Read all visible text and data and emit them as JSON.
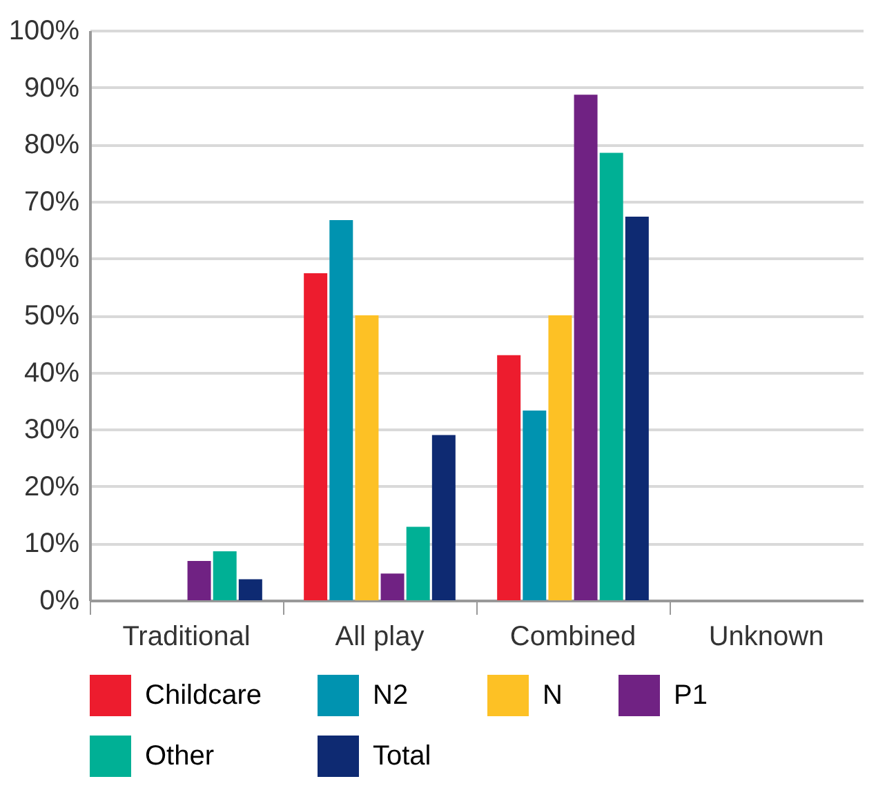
{
  "chart_data": {
    "type": "bar",
    "categories": [
      "Traditional",
      "All play",
      "Combined",
      "Unknown"
    ],
    "series": [
      {
        "name": "Childcare",
        "color": "#ed1c2e",
        "values": [
          0,
          57.4,
          43.0,
          0
        ]
      },
      {
        "name": "N2",
        "color": "#0093b0",
        "values": [
          0,
          66.7,
          33.3,
          0
        ]
      },
      {
        "name": "N",
        "color": "#fdc125",
        "values": [
          0,
          50,
          50,
          0
        ]
      },
      {
        "name": "P1",
        "color": "#702283",
        "values": [
          6.9,
          4.7,
          88.7,
          0
        ]
      },
      {
        "name": "Other",
        "color": "#00b095",
        "values": [
          8.6,
          12.9,
          78.5,
          0
        ]
      },
      {
        "name": "Total",
        "color": "#0e2a72",
        "values": [
          3.7,
          29.0,
          67.3,
          0
        ]
      }
    ],
    "ylim": [
      0,
      100
    ],
    "yticks": [
      {
        "value": 0,
        "label": "0%"
      },
      {
        "value": 10,
        "label": "10%"
      },
      {
        "value": 20,
        "label": "20%"
      },
      {
        "value": 30,
        "label": "30%"
      },
      {
        "value": 40,
        "label": "40%"
      },
      {
        "value": 50,
        "label": "50%"
      },
      {
        "value": 60,
        "label": "60%"
      },
      {
        "value": 70,
        "label": "70%"
      },
      {
        "value": 80,
        "label": "80%"
      },
      {
        "value": 90,
        "label": "90%"
      },
      {
        "value": 100,
        "label": "100%"
      }
    ],
    "grid": "y",
    "legend": "bottom"
  }
}
